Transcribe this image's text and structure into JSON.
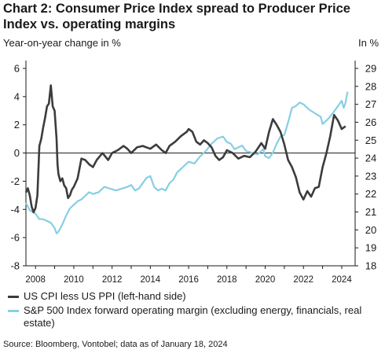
{
  "title": "Chart 2: Consumer Price Index spread to Producer Price Index vs. operating margins",
  "left_axis_label": "Year-on-year change in %",
  "right_axis_label": "In %",
  "source": "Source: Bloomberg, Vontobel; data as of January 18, 2024",
  "colors": {
    "cpi_spread": "#3c3c3c",
    "margin": "#86cfe3",
    "axis": "#1a1a1a"
  },
  "chart_data": {
    "type": "line",
    "x_ticks": [
      "2008",
      "2010",
      "2012",
      "2014",
      "2016",
      "2018",
      "2020",
      "2022",
      "2024"
    ],
    "xlim": [
      2007.5,
      2024.7
    ],
    "y_left": {
      "ticks": [
        "6",
        "4",
        "2",
        "0",
        "-2",
        "-4",
        "-6",
        "-8"
      ],
      "ylim": [
        -8,
        6
      ]
    },
    "y_right": {
      "ticks": [
        "29",
        "28",
        "27",
        "26",
        "25",
        "24",
        "23",
        "22",
        "21",
        "20",
        "19",
        "18"
      ],
      "ylim": [
        18,
        29
      ]
    },
    "grid": false,
    "legend_position": "bottom-left",
    "series": [
      {
        "name": "US CPI less US PPI (left-hand side)",
        "axis": "left",
        "x": [
          2007.5,
          2007.6,
          2007.7,
          2007.8,
          2007.9,
          2008.0,
          2008.1,
          2008.2,
          2008.3,
          2008.4,
          2008.5,
          2008.6,
          2008.7,
          2008.8,
          2008.9,
          2009.0,
          2009.1,
          2009.15,
          2009.2,
          2009.3,
          2009.4,
          2009.5,
          2009.6,
          2009.7,
          2009.8,
          2009.9,
          2010.0,
          2010.2,
          2010.4,
          2010.6,
          2010.8,
          2011.0,
          2011.2,
          2011.5,
          2011.8,
          2012.0,
          2012.3,
          2012.6,
          2012.8,
          2013.0,
          2013.3,
          2013.6,
          2014.0,
          2014.3,
          2014.6,
          2014.8,
          2015.0,
          2015.3,
          2015.6,
          2015.9,
          2016.0,
          2016.2,
          2016.4,
          2016.6,
          2016.8,
          2017.0,
          2017.2,
          2017.4,
          2017.6,
          2017.8,
          2018.0,
          2018.3,
          2018.6,
          2018.9,
          2019.2,
          2019.5,
          2019.8,
          2020.0,
          2020.2,
          2020.4,
          2020.6,
          2020.8,
          2021.0,
          2021.2,
          2021.4,
          2021.6,
          2021.8,
          2022.0,
          2022.2,
          2022.4,
          2022.6,
          2022.8,
          2023.0,
          2023.2,
          2023.4,
          2023.6,
          2023.8,
          2024.0,
          2024.2
        ],
        "values": [
          -2.8,
          -2.5,
          -3.0,
          -3.8,
          -4.2,
          -3.9,
          -3.0,
          0.5,
          1.0,
          1.8,
          2.5,
          3.3,
          3.5,
          4.8,
          3.3,
          3.0,
          1.0,
          -0.8,
          -1.5,
          -2.0,
          -1.8,
          -2.3,
          -2.5,
          -3.2,
          -3.0,
          -2.6,
          -2.4,
          -1.8,
          -0.4,
          -0.5,
          -0.8,
          -1.0,
          -0.5,
          0.0,
          -0.5,
          0.0,
          0.2,
          0.5,
          0.3,
          0.0,
          0.4,
          0.5,
          0.3,
          0.6,
          0.2,
          0.0,
          0.5,
          0.8,
          1.2,
          1.5,
          1.7,
          1.5,
          0.8,
          0.6,
          0.9,
          0.7,
          0.4,
          -0.2,
          -0.5,
          -0.3,
          0.2,
          0.0,
          -0.4,
          -0.2,
          -0.3,
          0.1,
          0.7,
          0.3,
          1.5,
          2.4,
          2.0,
          1.5,
          0.6,
          -0.5,
          -1.0,
          -1.7,
          -2.8,
          -3.3,
          -2.7,
          -3.1,
          -2.5,
          -2.4,
          -1.0,
          0.0,
          1.2,
          2.7,
          2.3,
          1.7,
          1.9
        ]
      },
      {
        "name": "S&P 500 Index forward operating margin (excluding energy, financials, real estate)",
        "axis": "right",
        "x": [
          2007.5,
          2007.7,
          2008.0,
          2008.2,
          2008.4,
          2008.6,
          2008.8,
          2009.0,
          2009.1,
          2009.2,
          2009.4,
          2009.6,
          2009.8,
          2010.0,
          2010.2,
          2010.4,
          2010.6,
          2010.8,
          2011.0,
          2011.3,
          2011.6,
          2011.9,
          2012.2,
          2012.5,
          2012.8,
          2013.0,
          2013.2,
          2013.4,
          2013.6,
          2013.8,
          2014.0,
          2014.2,
          2014.4,
          2014.6,
          2014.8,
          2015.0,
          2015.2,
          2015.4,
          2015.6,
          2015.8,
          2016.0,
          2016.3,
          2016.6,
          2016.9,
          2017.2,
          2017.5,
          2017.8,
          2018.0,
          2018.2,
          2018.4,
          2018.6,
          2018.8,
          2019.0,
          2019.3,
          2019.6,
          2019.9,
          2020.0,
          2020.2,
          2020.4,
          2020.6,
          2020.8,
          2021.0,
          2021.2,
          2021.4,
          2021.6,
          2021.8,
          2022.0,
          2022.3,
          2022.6,
          2022.9,
          2023.0,
          2023.3,
          2023.6,
          2023.8,
          2024.0,
          2024.1,
          2024.2,
          2024.3
        ],
        "values": [
          21.5,
          21.1,
          20.9,
          20.6,
          20.6,
          20.5,
          20.4,
          20.1,
          19.8,
          19.9,
          20.3,
          20.8,
          21.2,
          21.4,
          21.6,
          21.7,
          21.9,
          22.1,
          22.0,
          22.1,
          22.4,
          22.3,
          22.2,
          22.3,
          22.4,
          22.5,
          22.2,
          22.3,
          22.6,
          22.9,
          23.0,
          22.4,
          22.2,
          22.3,
          22.2,
          22.6,
          22.8,
          23.2,
          23.4,
          23.6,
          23.8,
          23.7,
          24.1,
          24.4,
          24.8,
          25.1,
          25.2,
          24.9,
          24.8,
          24.5,
          24.6,
          24.7,
          24.4,
          24.3,
          24.2,
          24.5,
          24.1,
          24.0,
          24.3,
          24.8,
          25.2,
          25.3,
          26.0,
          26.8,
          26.9,
          27.1,
          27.0,
          26.7,
          26.5,
          26.3,
          25.9,
          26.2,
          26.6,
          26.9,
          27.2,
          26.8,
          27.1,
          27.7
        ]
      }
    ]
  }
}
